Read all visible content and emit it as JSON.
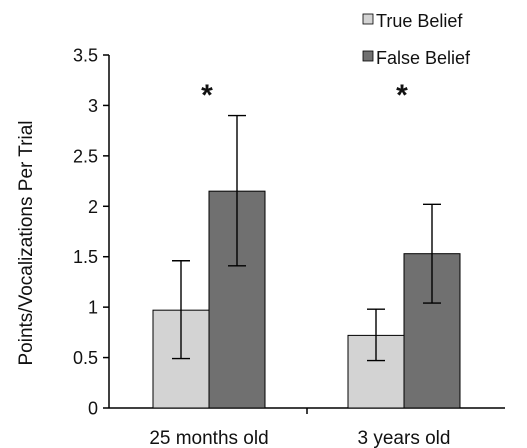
{
  "chart_data": {
    "type": "bar",
    "title": "",
    "xlabel": "",
    "ylabel": "Points/Vocalizations Per Trial",
    "ylim": [
      0,
      3.5
    ],
    "yticks": [
      "0",
      "0.5",
      "1",
      "1.5",
      "2",
      "2.5",
      "3",
      "3.5"
    ],
    "categories": [
      "25 months old",
      "3 years old"
    ],
    "series": [
      {
        "name": "True Belief",
        "color": "#d3d3d3",
        "values": [
          0.97,
          0.72
        ],
        "error": [
          [
            0.49,
            1.46
          ],
          [
            0.47,
            0.98
          ]
        ]
      },
      {
        "name": "False Belief",
        "color": "#707070",
        "values": [
          2.15,
          1.53
        ],
        "error": [
          [
            1.41,
            2.9
          ],
          [
            1.04,
            2.02
          ]
        ]
      }
    ],
    "significance": [
      "*",
      "*"
    ],
    "grid": false,
    "legend": "top-right"
  }
}
